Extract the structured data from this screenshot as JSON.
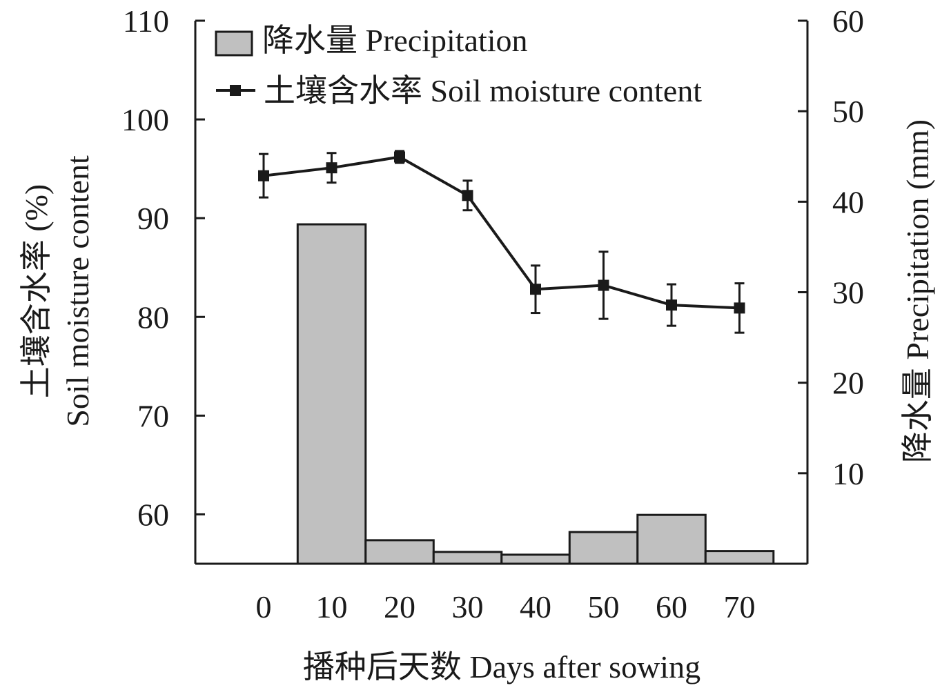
{
  "chart_data": {
    "type": "bar+line",
    "x_categories": [
      "0",
      "10",
      "20",
      "30",
      "40",
      "50",
      "60",
      "70"
    ],
    "xlabel": "播种后天数 Days after sowing",
    "y_left": {
      "label_cn": "土壤含水率 (%)",
      "label_en": "Soil moisture content",
      "ylim": [
        55,
        110
      ],
      "ticks": [
        60,
        70,
        80,
        90,
        100,
        110
      ]
    },
    "y_right": {
      "label": "降水量 Precipitation (mm)",
      "ylim": [
        0,
        60
      ],
      "ticks": [
        10,
        20,
        30,
        40,
        50,
        60
      ]
    },
    "series": [
      {
        "name": "降水量 Precipitation",
        "kind": "bar",
        "axis": "right",
        "x": [
          "10",
          "20",
          "30",
          "40",
          "50",
          "60",
          "70"
        ],
        "values": [
          37.5,
          2.6,
          1.3,
          1.0,
          3.5,
          5.4,
          1.4
        ]
      },
      {
        "name": "土壤含水率 Soil moisture content",
        "kind": "line",
        "axis": "left",
        "x": [
          "0",
          "10",
          "20",
          "30",
          "40",
          "50",
          "60",
          "70"
        ],
        "values": [
          94.3,
          95.1,
          96.2,
          92.3,
          82.8,
          83.2,
          81.2,
          80.9
        ],
        "error": [
          2.2,
          1.5,
          0.6,
          1.5,
          2.4,
          3.4,
          2.1,
          2.5
        ]
      }
    ],
    "legend_position": "top-left",
    "grid": false,
    "colors": {
      "bar_fill": "#c0c0c0",
      "line": "#1a1a1a"
    }
  }
}
